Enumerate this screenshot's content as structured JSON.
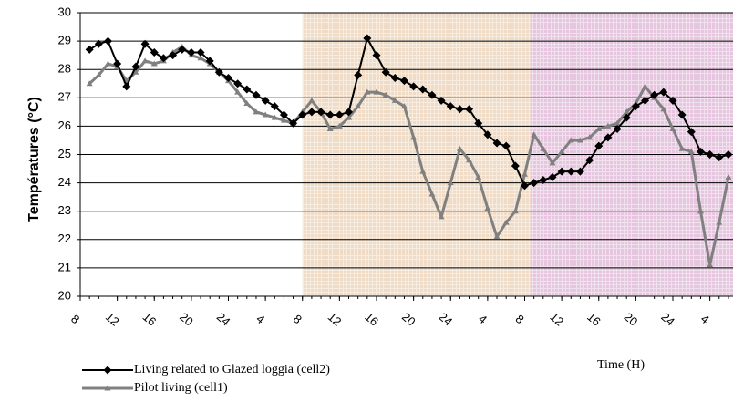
{
  "chart_data": {
    "type": "line",
    "y_label": "Températures (°C)",
    "x_label": "Time (H)",
    "x": [
      1,
      2,
      3,
      4,
      5,
      6,
      7,
      8,
      9,
      10,
      11,
      12,
      13,
      14,
      15,
      16,
      17,
      18,
      19,
      20,
      21,
      22,
      23,
      24,
      25,
      26,
      27,
      28,
      29,
      30,
      31,
      32,
      33,
      34,
      35,
      36,
      37,
      38,
      39,
      40,
      41,
      42,
      43,
      44,
      45,
      46,
      47,
      48,
      49,
      50,
      51,
      52,
      53,
      54,
      55,
      56,
      57,
      58,
      59,
      60,
      61,
      62,
      63,
      64,
      65,
      66,
      67,
      68,
      69,
      70
    ],
    "series": [
      {
        "name": "Living related to Glazed loggia (cell2)",
        "color": "#000000",
        "marker": "diamond",
        "values": [
          28.7,
          28.9,
          29.0,
          28.2,
          27.4,
          28.1,
          28.9,
          28.6,
          28.4,
          28.5,
          28.7,
          28.6,
          28.6,
          28.3,
          27.9,
          27.7,
          27.5,
          27.3,
          27.1,
          26.9,
          26.7,
          26.4,
          26.1,
          26.4,
          26.5,
          26.5,
          26.4,
          26.4,
          26.5,
          27.8,
          29.1,
          28.5,
          27.9,
          27.7,
          27.6,
          27.4,
          27.3,
          27.1,
          26.9,
          26.7,
          26.6,
          26.6,
          26.1,
          25.7,
          25.4,
          25.3,
          24.6,
          23.9,
          24.0,
          24.1,
          24.2,
          24.4,
          24.4,
          24.4,
          24.8,
          25.3,
          25.6,
          25.9,
          26.3,
          26.7,
          26.9,
          27.1,
          27.2,
          26.9,
          26.4,
          25.8,
          25.1,
          25.0,
          24.9,
          25.0
        ]
      },
      {
        "name": "Pilot living (cell1)",
        "color": "#808080",
        "marker": "triangle",
        "values": [
          27.5,
          27.8,
          28.2,
          28.1,
          27.6,
          27.9,
          28.3,
          28.2,
          28.3,
          28.6,
          28.8,
          28.5,
          28.4,
          28.2,
          27.9,
          27.6,
          27.2,
          26.8,
          26.5,
          26.4,
          26.3,
          26.2,
          26.1,
          26.5,
          26.9,
          26.5,
          25.9,
          26.0,
          26.3,
          26.7,
          27.2,
          27.2,
          27.1,
          26.9,
          26.7,
          25.6,
          24.4,
          23.6,
          22.8,
          24.0,
          25.2,
          24.8,
          24.2,
          23.1,
          22.1,
          22.6,
          23.0,
          24.3,
          25.7,
          25.2,
          24.7,
          25.1,
          25.5,
          25.5,
          25.6,
          25.9,
          26.0,
          26.1,
          26.5,
          26.8,
          27.4,
          27.0,
          26.6,
          25.9,
          25.2,
          25.1,
          23.0,
          21.1,
          22.6,
          24.2
        ]
      }
    ],
    "xlim": [
      0,
      70.5
    ],
    "xticks": [
      {
        "value": 0,
        "label": "8"
      },
      {
        "value": 4,
        "label": "12"
      },
      {
        "value": 8,
        "label": "16"
      },
      {
        "value": 12,
        "label": "20"
      },
      {
        "value": 16,
        "label": "24"
      },
      {
        "value": 20,
        "label": "4"
      },
      {
        "value": 24,
        "label": "8"
      },
      {
        "value": 28,
        "label": "12"
      },
      {
        "value": 32,
        "label": "16"
      },
      {
        "value": 36,
        "label": "20"
      },
      {
        "value": 40,
        "label": "24"
      },
      {
        "value": 44,
        "label": "4"
      },
      {
        "value": 48,
        "label": "8"
      },
      {
        "value": 52,
        "label": "12"
      },
      {
        "value": 56,
        "label": "16"
      },
      {
        "value": 60,
        "label": "20"
      },
      {
        "value": 64,
        "label": "24"
      },
      {
        "value": 68,
        "label": "4"
      }
    ],
    "ylim": [
      20,
      30
    ],
    "yticks": [
      20,
      21,
      22,
      23,
      24,
      25,
      26,
      27,
      28,
      29,
      30
    ],
    "grid": true,
    "bands": [
      {
        "from": 24,
        "to": 48.6,
        "color": "#f0dcc6"
      },
      {
        "from": 48.6,
        "to": 70.5,
        "color": "#e6c6de"
      }
    ]
  }
}
